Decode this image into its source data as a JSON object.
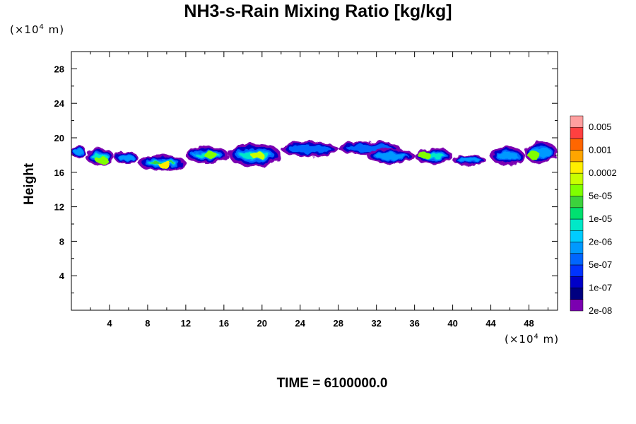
{
  "chart_data": {
    "type": "heatmap",
    "title": "NH3-s-Rain Mixing Ratio [kg/kg]",
    "ylabel": "Height",
    "x_unit": "(×10",
    "x_unit_exp": "4",
    "x_unit_end": " m)",
    "y_unit": "(×10",
    "y_unit_exp": "4",
    "y_unit_end": " m)",
    "xlim": [
      0,
      51
    ],
    "ylim": [
      0,
      30
    ],
    "x_ticks": [
      4,
      8,
      12,
      16,
      20,
      24,
      28,
      32,
      36,
      40,
      44,
      48
    ],
    "y_ticks": [
      4,
      8,
      12,
      16,
      20,
      24,
      28
    ],
    "x_tick_labels": [
      "4",
      "8",
      "12",
      "16",
      "20",
      "24",
      "28",
      "32",
      "36",
      "40",
      "44",
      "48"
    ],
    "y_tick_labels": [
      "4",
      "8",
      "12",
      "16",
      "20",
      "24",
      "28"
    ],
    "colorbar": {
      "colors": [
        "#ff9f9f",
        "#ff4040",
        "#ff6600",
        "#ffa500",
        "#ffee00",
        "#c8ff00",
        "#80ff00",
        "#3cd23c",
        "#00e070",
        "#00e8c8",
        "#00ccff",
        "#0099ff",
        "#0066ff",
        "#0033ff",
        "#0000c8",
        "#000080",
        "#7b00b0"
      ],
      "labels": [
        "0.005",
        "0.001",
        "0.0002",
        "5e-05",
        "1e-05",
        "2e-06",
        "5e-07",
        "1e-07",
        "2e-08"
      ]
    },
    "bands": [
      {
        "x0": 0.0,
        "x1": 1.5,
        "ylow": 17.6,
        "yhigh": 19.2,
        "level": 3
      },
      {
        "x0": 1.5,
        "x1": 4.5,
        "ylow": 16.8,
        "yhigh": 18.8,
        "level": 4
      },
      {
        "x0": 4.5,
        "x1": 7.0,
        "ylow": 17.0,
        "yhigh": 18.4,
        "level": 3
      },
      {
        "x0": 7.0,
        "x1": 12.0,
        "ylow": 16.2,
        "yhigh": 18.0,
        "level": 5
      },
      {
        "x0": 12.0,
        "x1": 16.5,
        "ylow": 17.0,
        "yhigh": 19.0,
        "level": 4
      },
      {
        "x0": 16.5,
        "x1": 22.0,
        "ylow": 16.6,
        "yhigh": 19.4,
        "level": 4
      },
      {
        "x0": 22.0,
        "x1": 28.0,
        "ylow": 17.8,
        "yhigh": 19.6,
        "level": 2
      },
      {
        "x0": 28.0,
        "x1": 34.5,
        "ylow": 18.0,
        "yhigh": 19.6,
        "level": 2
      },
      {
        "x0": 31.0,
        "x1": 36.0,
        "ylow": 17.0,
        "yhigh": 18.8,
        "level": 3
      },
      {
        "x0": 36.0,
        "x1": 40.0,
        "ylow": 17.0,
        "yhigh": 18.8,
        "level": 4
      },
      {
        "x0": 40.0,
        "x1": 43.5,
        "ylow": 16.8,
        "yhigh": 18.0,
        "level": 3
      },
      {
        "x0": 44.0,
        "x1": 47.5,
        "ylow": 16.8,
        "yhigh": 19.0,
        "level": 3
      },
      {
        "x0": 47.5,
        "x1": 51.0,
        "ylow": 17.0,
        "yhigh": 19.6,
        "level": 3
      }
    ],
    "cores": [
      {
        "x": 3.2,
        "y": 17.4,
        "level": 4
      },
      {
        "x": 9.8,
        "y": 16.9,
        "level": 6
      },
      {
        "x": 14.6,
        "y": 18.0,
        "level": 4
      },
      {
        "x": 19.5,
        "y": 18.0,
        "level": 5
      },
      {
        "x": 37.0,
        "y": 18.0,
        "level": 4
      },
      {
        "x": 48.5,
        "y": 18.0,
        "level": 4
      }
    ]
  },
  "time_label": "TIME = 6100000.0"
}
